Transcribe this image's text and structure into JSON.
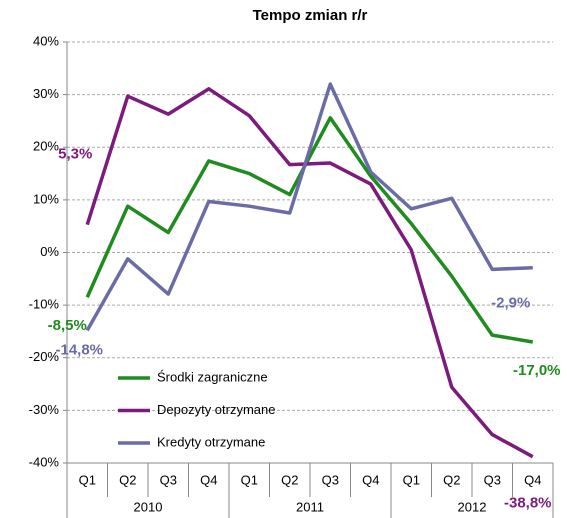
{
  "chart_data": {
    "type": "line",
    "title": "Tempo zmian r/r",
    "categories": [
      "Q1",
      "Q2",
      "Q3",
      "Q4",
      "Q1",
      "Q2",
      "Q3",
      "Q4",
      "Q1",
      "Q2",
      "Q3",
      "Q4"
    ],
    "groups": [
      "2010",
      "2011",
      "2012"
    ],
    "ylim": [
      -40,
      40
    ],
    "yticks": [
      {
        "value": -40,
        "label": "-40%"
      },
      {
        "value": -30,
        "label": "-30%"
      },
      {
        "value": -20,
        "label": "-20%"
      },
      {
        "value": -10,
        "label": "-10%"
      },
      {
        "value": 0,
        "label": "0%"
      },
      {
        "value": 10,
        "label": "10%"
      },
      {
        "value": 20,
        "label": "20%"
      },
      {
        "value": 30,
        "label": "30%"
      },
      {
        "value": 40,
        "label": "40%"
      }
    ],
    "grid": true,
    "legend": "lower left",
    "series": [
      {
        "name": "Środki zagraniczne",
        "color": "#1e8c1e",
        "values": [
          -8.5,
          8.8,
          3.8,
          17.4,
          15.0,
          11.0,
          25.6,
          14.5,
          5.5,
          -4.5,
          -15.7,
          -17.0
        ],
        "value_labels": [
          "-8,5%",
          null,
          null,
          null,
          null,
          null,
          null,
          null,
          null,
          null,
          null,
          "-17,0%"
        ]
      },
      {
        "name": "Depozyty otrzymane",
        "color": "#7d1a7d",
        "values": [
          5.3,
          29.7,
          26.3,
          31.1,
          26.0,
          16.7,
          17.0,
          13.0,
          0.5,
          -25.6,
          -34.6,
          -38.8
        ],
        "value_labels": [
          "5,3%",
          null,
          null,
          null,
          null,
          null,
          null,
          null,
          null,
          null,
          null,
          "-38,8%"
        ]
      },
      {
        "name": "Kredyty otrzymane",
        "color": "#6b6ba6",
        "values": [
          -14.8,
          -1.2,
          -7.9,
          9.7,
          8.8,
          7.5,
          32.0,
          15.3,
          8.3,
          10.3,
          -3.2,
          -2.9
        ],
        "value_labels": [
          "-14,8%",
          null,
          null,
          null,
          null,
          null,
          null,
          null,
          null,
          null,
          null,
          "-2,9%"
        ]
      }
    ]
  }
}
